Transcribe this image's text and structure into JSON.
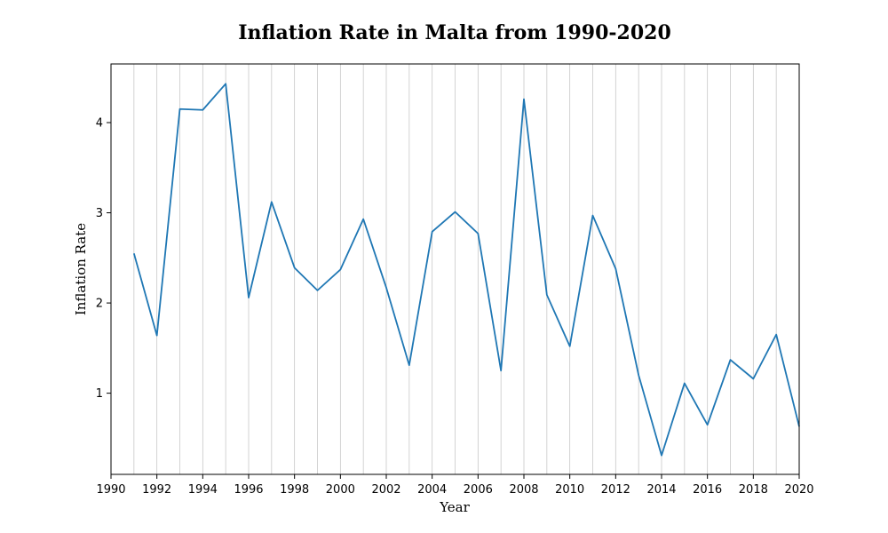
{
  "chart_data": {
    "type": "line",
    "title": "Inflation Rate in Malta from 1990-2020",
    "xlabel": "Year",
    "ylabel": "Inflation Rate",
    "xlim": [
      1990,
      2020
    ],
    "ylim": [
      0.1,
      4.65
    ],
    "x_ticks": [
      1990,
      1992,
      1994,
      1996,
      1998,
      2000,
      2002,
      2004,
      2006,
      2008,
      2010,
      2012,
      2014,
      2016,
      2018,
      2020
    ],
    "y_ticks": [
      1,
      2,
      3,
      4
    ],
    "grid": "vertical-yearly",
    "line_color": "#1f77b4",
    "grid_color": "#c8c8c8",
    "series": [
      {
        "x": [
          1991,
          1992,
          1993,
          1994,
          1995,
          1996,
          1997,
          1998,
          1999,
          2000,
          2001,
          2002,
          2003,
          2004,
          2005,
          2006,
          2007,
          2008,
          2009,
          2010,
          2011,
          2012,
          2013,
          2014,
          2015,
          2016,
          2017,
          2018,
          2019,
          2020
        ],
        "values": [
          2.55,
          1.64,
          4.15,
          4.14,
          4.43,
          2.06,
          3.12,
          2.39,
          2.14,
          2.37,
          2.93,
          2.17,
          1.31,
          2.79,
          3.01,
          2.77,
          1.25,
          4.26,
          2.09,
          1.52,
          2.97,
          2.38,
          1.2,
          0.31,
          1.11,
          0.65,
          1.37,
          1.16,
          1.65,
          0.63
        ]
      }
    ]
  }
}
